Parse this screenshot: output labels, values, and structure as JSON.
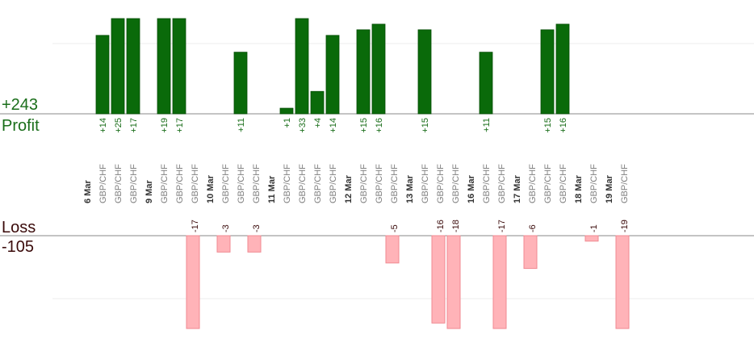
{
  "profit_label": "Profit",
  "profit_total": "+243",
  "loss_label": "Loss",
  "loss_total": "-105",
  "colors": {
    "profit_bar": "#0a6a0a",
    "profit_text": "#1a6e1a",
    "loss_bar": "#ffb3b8",
    "loss_bar_border": "#f08a92",
    "loss_text": "#3a0a0a",
    "pair_text": "#808080",
    "date_text": "#333333"
  },
  "chart_data": {
    "type": "bar",
    "pair": "GBP/CHF",
    "profit_scale_max": 17,
    "loss_scale_max": 17,
    "columns": [
      {
        "kind": "date",
        "label": "6 Mar"
      },
      {
        "kind": "trade",
        "pair": "GBP/CHF",
        "value": 14,
        "label": "+14"
      },
      {
        "kind": "trade",
        "pair": "GBP/CHF",
        "value": 25,
        "label": "+25"
      },
      {
        "kind": "trade",
        "pair": "GBP/CHF",
        "value": 17,
        "label": "+17"
      },
      {
        "kind": "gap"
      },
      {
        "kind": "date",
        "label": "9 Mar"
      },
      {
        "kind": "trade",
        "pair": "GBP/CHF",
        "value": 19,
        "label": "+19"
      },
      {
        "kind": "trade",
        "pair": "GBP/CHF",
        "value": 17,
        "label": "+17"
      },
      {
        "kind": "trade",
        "pair": "GBP/CHF",
        "value": -17,
        "label": "-17"
      },
      {
        "kind": "gap"
      },
      {
        "kind": "date",
        "label": "10 Mar"
      },
      {
        "kind": "trade",
        "pair": "GBP/CHF",
        "value": -3,
        "label": "-3"
      },
      {
        "kind": "trade",
        "pair": "GBP/CHF",
        "value": 11,
        "label": "+11"
      },
      {
        "kind": "trade",
        "pair": "GBP/CHF",
        "value": -3,
        "label": "-3"
      },
      {
        "kind": "gap"
      },
      {
        "kind": "date",
        "label": "11 Mar"
      },
      {
        "kind": "trade",
        "pair": "GBP/CHF",
        "value": 1,
        "label": "+1"
      },
      {
        "kind": "trade",
        "pair": "GBP/CHF",
        "value": 33,
        "label": "+33"
      },
      {
        "kind": "trade",
        "pair": "GBP/CHF",
        "value": 4,
        "label": "+4"
      },
      {
        "kind": "trade",
        "pair": "GBP/CHF",
        "value": 14,
        "label": "+14"
      },
      {
        "kind": "gap"
      },
      {
        "kind": "date",
        "label": "12 Mar"
      },
      {
        "kind": "trade",
        "pair": "GBP/CHF",
        "value": 15,
        "label": "+15"
      },
      {
        "kind": "trade",
        "pair": "GBP/CHF",
        "value": 16,
        "label": "+16"
      },
      {
        "kind": "trade",
        "pair": "GBP/CHF",
        "value": -5,
        "label": "-5"
      },
      {
        "kind": "gap"
      },
      {
        "kind": "date",
        "label": "13 Mar"
      },
      {
        "kind": "trade",
        "pair": "GBP/CHF",
        "value": 15,
        "label": "+15"
      },
      {
        "kind": "trade",
        "pair": "GBP/CHF",
        "value": -16,
        "label": "-16"
      },
      {
        "kind": "trade",
        "pair": "GBP/CHF",
        "value": -18,
        "label": "-18"
      },
      {
        "kind": "gap"
      },
      {
        "kind": "date",
        "label": "16 Mar"
      },
      {
        "kind": "trade",
        "pair": "GBP/CHF",
        "value": 11,
        "label": "+11"
      },
      {
        "kind": "trade",
        "pair": "GBP/CHF",
        "value": -17,
        "label": "-17"
      },
      {
        "kind": "gap"
      },
      {
        "kind": "date",
        "label": "17 Mar"
      },
      {
        "kind": "trade",
        "pair": "GBP/CHF",
        "value": -6,
        "label": "-6"
      },
      {
        "kind": "trade",
        "pair": "GBP/CHF",
        "value": 15,
        "label": "+15"
      },
      {
        "kind": "trade",
        "pair": "GBP/CHF",
        "value": 16,
        "label": "+16"
      },
      {
        "kind": "gap"
      },
      {
        "kind": "date",
        "label": "18 Mar"
      },
      {
        "kind": "trade",
        "pair": "GBP/CHF",
        "value": -1,
        "label": "-1"
      },
      {
        "kind": "gap"
      },
      {
        "kind": "date",
        "label": "19 Mar"
      },
      {
        "kind": "trade",
        "pair": "GBP/CHF",
        "value": -19,
        "label": "-19"
      }
    ]
  }
}
